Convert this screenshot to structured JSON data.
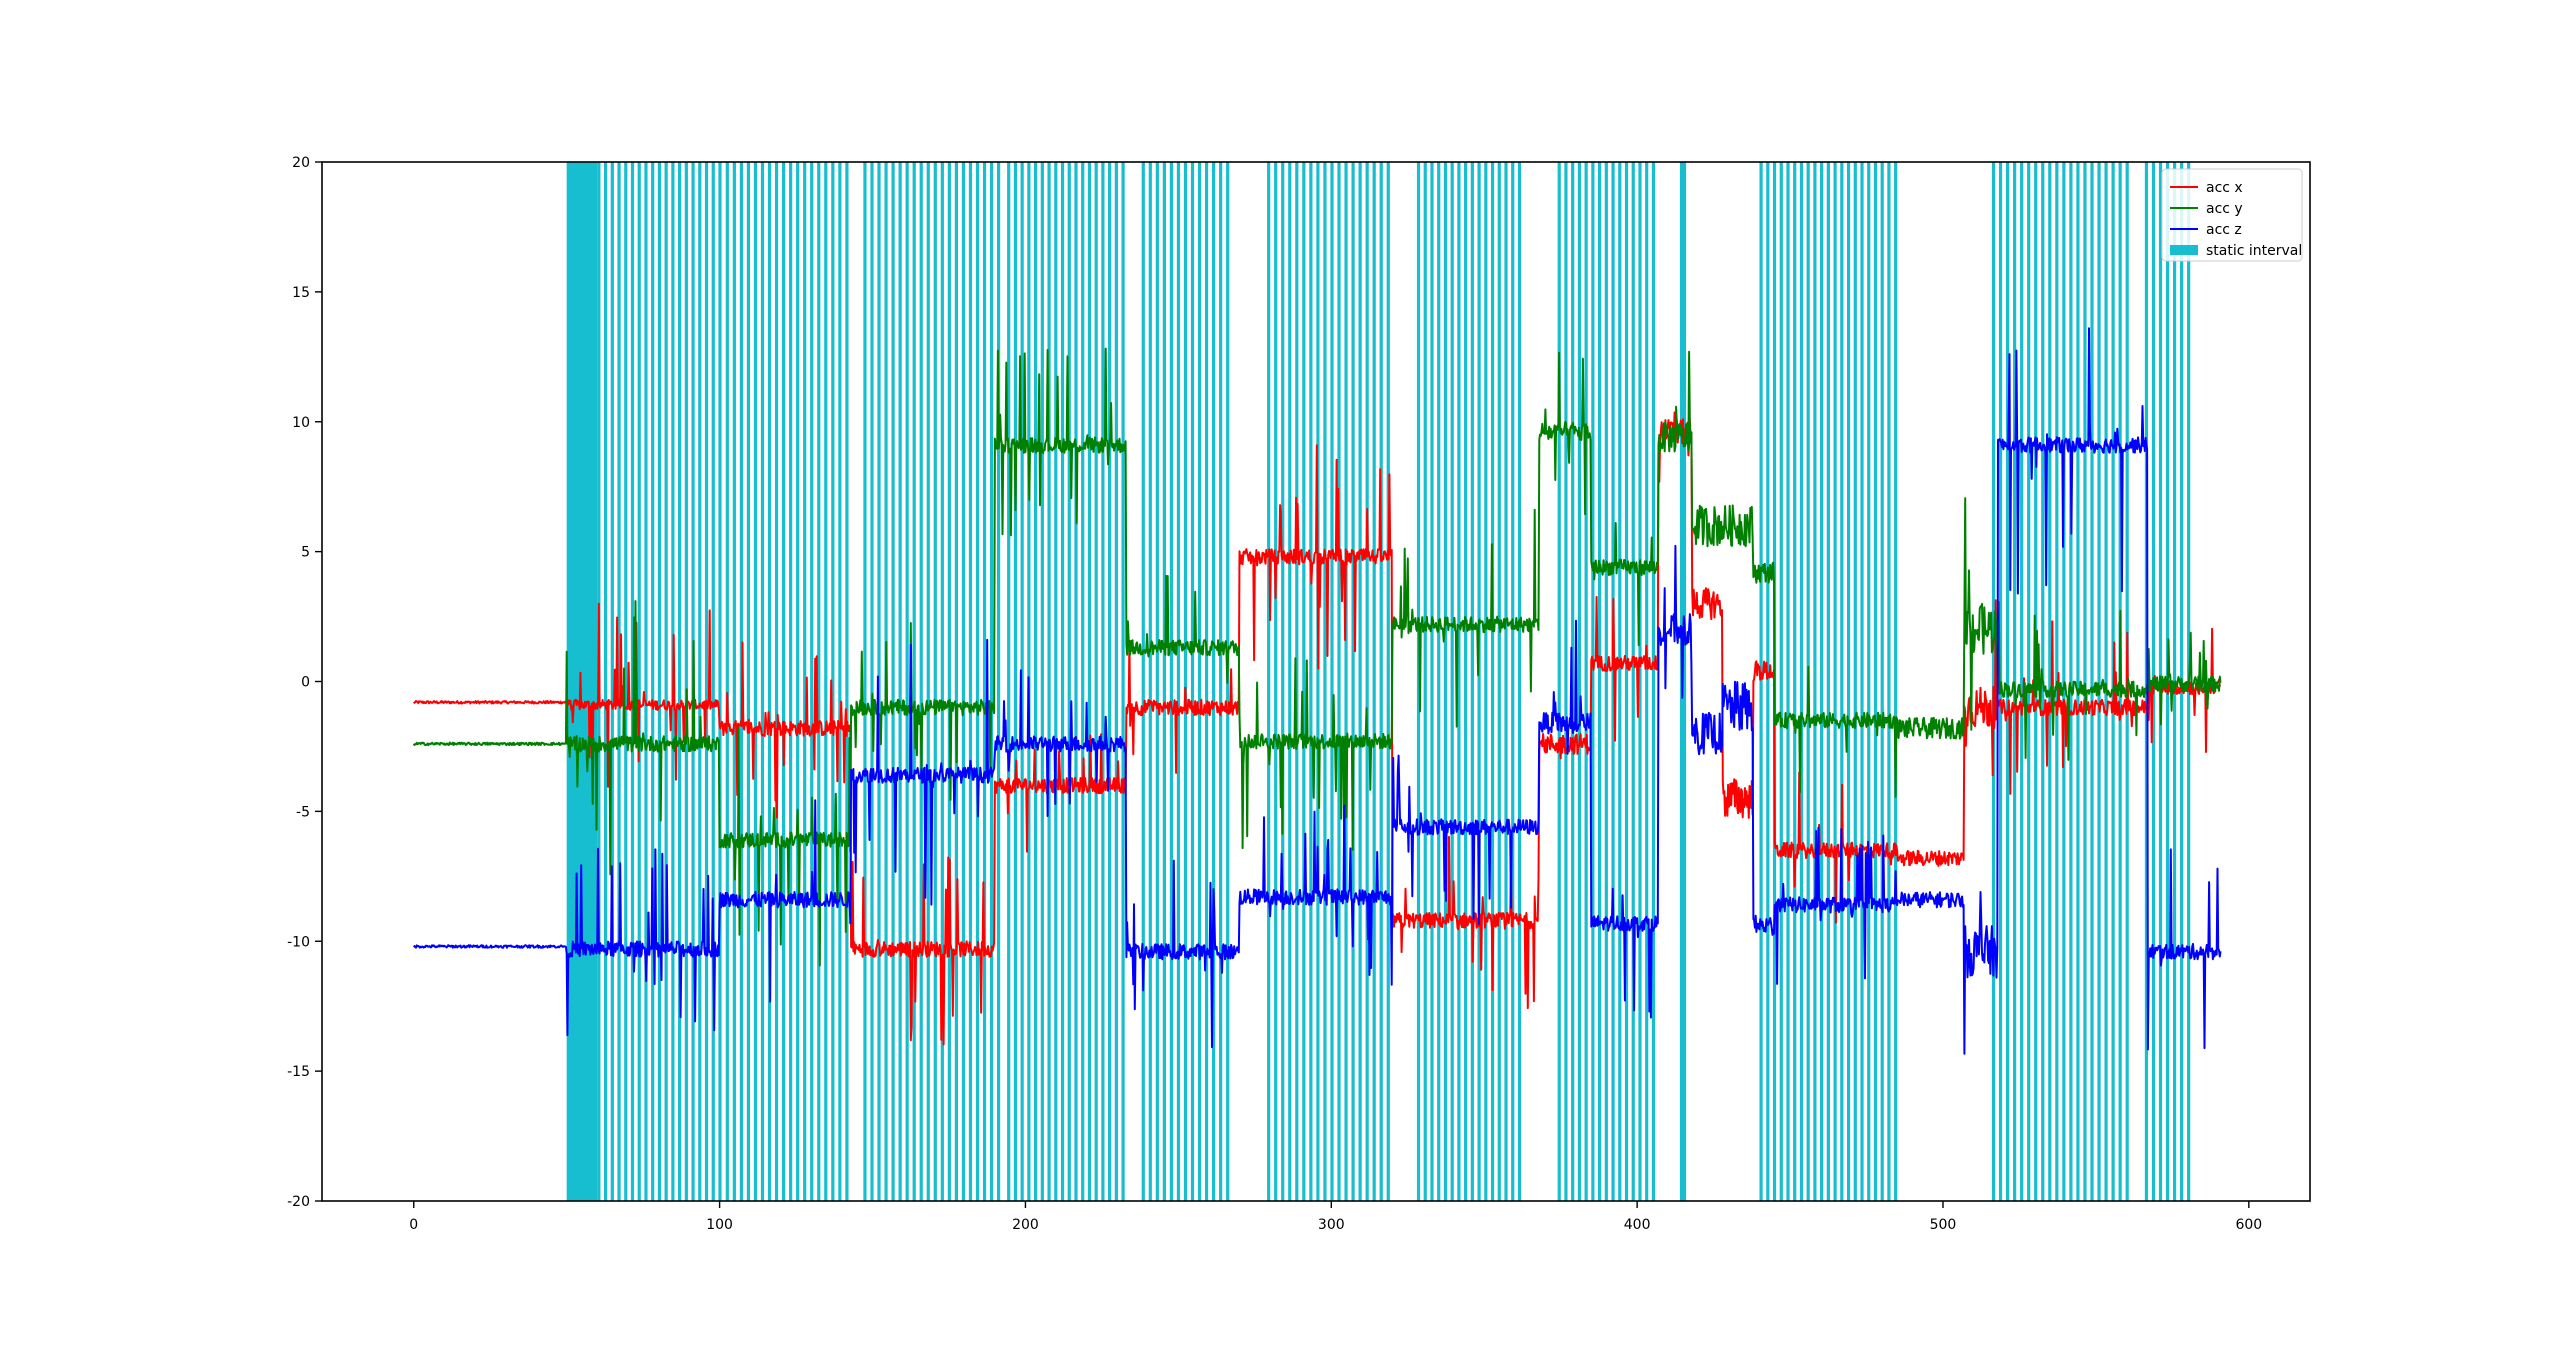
{
  "chart_data": {
    "type": "line",
    "title": "",
    "xlabel": "",
    "ylabel": "",
    "xlim": [
      -30,
      620
    ],
    "ylim": [
      -20,
      20
    ],
    "xticks": [
      0,
      100,
      200,
      300,
      400,
      500,
      600
    ],
    "yticks": [
      -20,
      -15,
      -10,
      -5,
      0,
      5,
      10,
      15,
      20
    ],
    "grid": false,
    "legend_position": "top-right",
    "legend": [
      "acc x",
      "acc y",
      "acc z",
      "static interval"
    ],
    "colors": {
      "acc_x": "#ff0000",
      "acc_y": "#008000",
      "acc_z": "#0000ff",
      "static_interval": "#17becf"
    },
    "series": [
      {
        "name": "acc x",
        "color": "#ff0000",
        "segments": [
          {
            "t0": 0,
            "t1": 50,
            "level": -0.8,
            "noise": 0.05
          },
          {
            "t0": 50,
            "t1": 100,
            "level": -0.9,
            "noise": 0.2,
            "spikes": 1.8
          },
          {
            "t0": 100,
            "t1": 143,
            "level": -1.8,
            "noise": 0.3,
            "spikes": 1.6
          },
          {
            "t0": 143,
            "t1": 190,
            "level": -10.3,
            "noise": 0.3,
            "spikes": 1.8
          },
          {
            "t0": 190,
            "t1": 233,
            "level": -4.0,
            "noise": 0.3,
            "spikes": 1.2
          },
          {
            "t0": 233,
            "t1": 270,
            "level": -1.0,
            "noise": 0.3,
            "spikes": 1.2
          },
          {
            "t0": 270,
            "t1": 320,
            "level": 4.8,
            "noise": 0.3,
            "spikes": 2.0
          },
          {
            "t0": 320,
            "t1": 368,
            "level": -9.2,
            "noise": 0.3,
            "spikes": 1.6
          },
          {
            "t0": 368,
            "t1": 385,
            "level": -2.4,
            "noise": 0.4,
            "spikes": 1.4
          },
          {
            "t0": 385,
            "t1": 407,
            "level": 0.7,
            "noise": 0.3,
            "spikes": 1.4
          },
          {
            "t0": 407,
            "t1": 418,
            "level": 9.6,
            "noise": 0.5,
            "spikes": 1.5
          },
          {
            "t0": 418,
            "t1": 428,
            "level": 3.0,
            "noise": 0.6
          },
          {
            "t0": 428,
            "t1": 438,
            "level": -4.5,
            "noise": 0.8
          },
          {
            "t0": 438,
            "t1": 445,
            "level": 0.4,
            "noise": 0.4
          },
          {
            "t0": 445,
            "t1": 485,
            "level": -6.5,
            "noise": 0.3,
            "spikes": 1.4
          },
          {
            "t0": 485,
            "t1": 507,
            "level": -6.8,
            "noise": 0.3
          },
          {
            "t0": 507,
            "t1": 518,
            "level": -1.0,
            "noise": 0.8,
            "spikes": 2.5
          },
          {
            "t0": 518,
            "t1": 567,
            "level": -1.0,
            "noise": 0.3,
            "spikes": 1.6
          },
          {
            "t0": 567,
            "t1": 591,
            "level": -0.2,
            "noise": 0.3,
            "spikes": 1.4
          }
        ]
      },
      {
        "name": "acc y",
        "color": "#008000",
        "segments": [
          {
            "t0": 0,
            "t1": 50,
            "level": -2.4,
            "noise": 0.05
          },
          {
            "t0": 50,
            "t1": 100,
            "level": -2.4,
            "noise": 0.3,
            "spikes": 2.5
          },
          {
            "t0": 100,
            "t1": 143,
            "level": -6.1,
            "noise": 0.3,
            "spikes": 2.2
          },
          {
            "t0": 143,
            "t1": 190,
            "level": -1.0,
            "noise": 0.3,
            "spikes": 2.0
          },
          {
            "t0": 190,
            "t1": 233,
            "level": 9.1,
            "noise": 0.3,
            "spikes": 1.8
          },
          {
            "t0": 233,
            "t1": 270,
            "level": 1.3,
            "noise": 0.3,
            "spikes": 1.6
          },
          {
            "t0": 270,
            "t1": 320,
            "level": -2.3,
            "noise": 0.3,
            "spikes": 2.2
          },
          {
            "t0": 320,
            "t1": 368,
            "level": 2.2,
            "noise": 0.3,
            "spikes": 2.2
          },
          {
            "t0": 368,
            "t1": 385,
            "level": 9.6,
            "noise": 0.4,
            "spikes": 1.6
          },
          {
            "t0": 385,
            "t1": 407,
            "level": 4.4,
            "noise": 0.3,
            "spikes": 1.6
          },
          {
            "t0": 407,
            "t1": 418,
            "level": 9.4,
            "noise": 0.6,
            "spikes": 1.5
          },
          {
            "t0": 418,
            "t1": 438,
            "level": 6.0,
            "noise": 0.8
          },
          {
            "t0": 438,
            "t1": 445,
            "level": 4.2,
            "noise": 0.4
          },
          {
            "t0": 445,
            "t1": 485,
            "level": -1.5,
            "noise": 0.3,
            "spikes": 1.4
          },
          {
            "t0": 485,
            "t1": 507,
            "level": -1.8,
            "noise": 0.4
          },
          {
            "t0": 507,
            "t1": 518,
            "level": 2.0,
            "noise": 1.0,
            "spikes": 2.5
          },
          {
            "t0": 518,
            "t1": 567,
            "level": -0.3,
            "noise": 0.3,
            "spikes": 1.6
          },
          {
            "t0": 567,
            "t1": 591,
            "level": -0.1,
            "noise": 0.3,
            "spikes": 1.2
          }
        ]
      },
      {
        "name": "acc z",
        "color": "#0000ff",
        "segments": [
          {
            "t0": 0,
            "t1": 50,
            "level": -10.2,
            "noise": 0.05
          },
          {
            "t0": 50,
            "t1": 100,
            "level": -10.3,
            "noise": 0.3,
            "spikes": 1.8
          },
          {
            "t0": 100,
            "t1": 143,
            "level": -8.4,
            "noise": 0.3,
            "spikes": 2.0
          },
          {
            "t0": 143,
            "t1": 190,
            "level": -3.6,
            "noise": 0.3,
            "spikes": 2.4
          },
          {
            "t0": 190,
            "t1": 233,
            "level": -2.4,
            "noise": 0.3,
            "spikes": 2.0
          },
          {
            "t0": 233,
            "t1": 270,
            "level": -10.4,
            "noise": 0.3,
            "spikes": 1.8
          },
          {
            "t0": 270,
            "t1": 320,
            "level": -8.3,
            "noise": 0.3,
            "spikes": 1.8
          },
          {
            "t0": 320,
            "t1": 368,
            "level": -5.6,
            "noise": 0.3,
            "spikes": 1.8
          },
          {
            "t0": 368,
            "t1": 385,
            "level": -1.6,
            "noise": 0.4,
            "spikes": 1.8
          },
          {
            "t0": 385,
            "t1": 407,
            "level": -9.3,
            "noise": 0.3,
            "spikes": 1.8
          },
          {
            "t0": 407,
            "t1": 418,
            "level": 2.0,
            "noise": 0.6,
            "spikes": 1.5
          },
          {
            "t0": 418,
            "t1": 428,
            "level": -2.0,
            "noise": 0.8
          },
          {
            "t0": 428,
            "t1": 438,
            "level": -1.0,
            "noise": 1.0
          },
          {
            "t0": 438,
            "t1": 445,
            "level": -9.4,
            "noise": 0.4
          },
          {
            "t0": 445,
            "t1": 485,
            "level": -8.6,
            "noise": 0.3,
            "spikes": 1.4
          },
          {
            "t0": 485,
            "t1": 507,
            "level": -8.4,
            "noise": 0.3
          },
          {
            "t0": 507,
            "t1": 518,
            "level": -10.4,
            "noise": 1.0,
            "spikes": 3.0
          },
          {
            "t0": 518,
            "t1": 567,
            "level": 9.1,
            "noise": 0.3,
            "spikes": 2.6
          },
          {
            "t0": 567,
            "t1": 591,
            "level": -10.4,
            "noise": 0.3,
            "spikes": 1.8
          }
        ]
      }
    ],
    "static_intervals": [
      {
        "x0": 50,
        "x1": 60
      },
      {
        "x0": 60,
        "x1": 100,
        "step": 2.2
      },
      {
        "x0": 102,
        "x1": 143,
        "step": 2.3
      },
      {
        "x0": 147,
        "x1": 192,
        "step": 2.3
      },
      {
        "x0": 194,
        "x1": 233,
        "step": 2.2
      },
      {
        "x0": 238,
        "x1": 266,
        "step": 2.3
      },
      {
        "x0": 279,
        "x1": 320,
        "step": 2.3
      },
      {
        "x0": 328,
        "x1": 362,
        "step": 2.2
      },
      {
        "x0": 374,
        "x1": 406,
        "step": 2.2
      },
      {
        "x0": 414,
        "x1": 416
      },
      {
        "x0": 440,
        "x1": 486,
        "step": 2.2
      },
      {
        "x0": 516,
        "x1": 560,
        "step": 2.3
      },
      {
        "x0": 566,
        "x1": 582,
        "step": 2.3
      }
    ]
  }
}
